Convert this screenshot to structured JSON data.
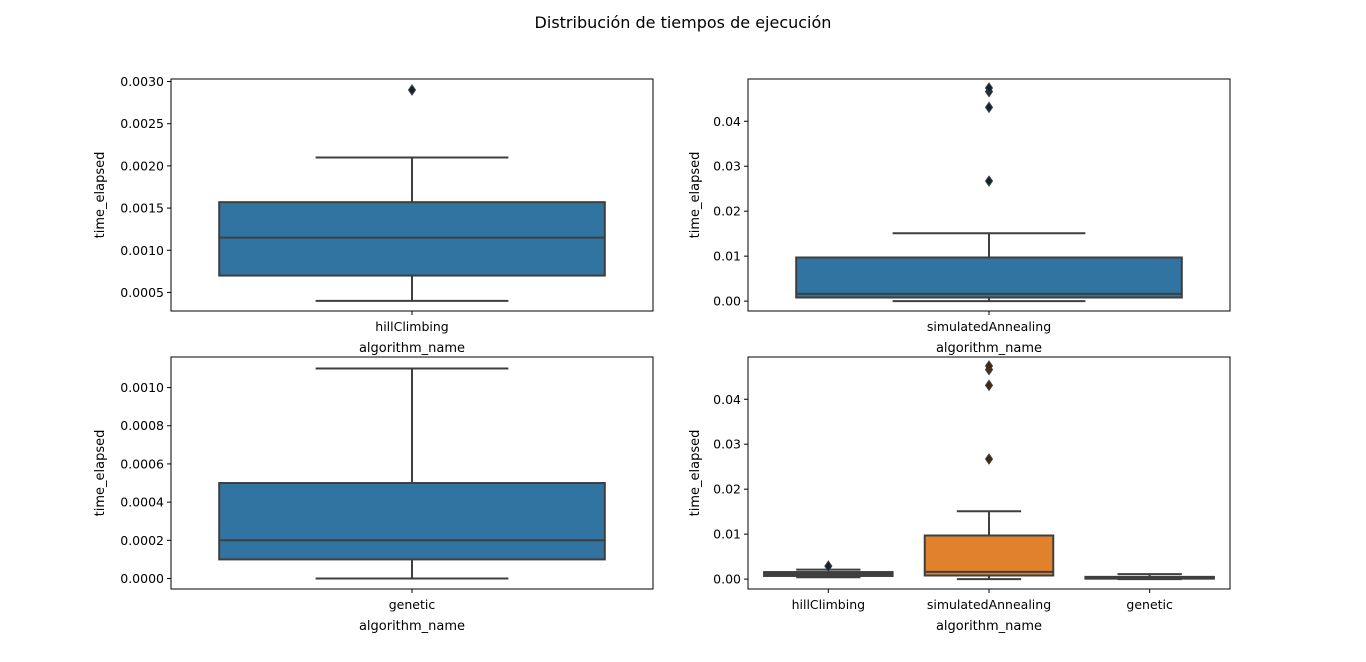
{
  "figure_title": "Distribución de tiempos de ejecución",
  "chart_data": [
    {
      "type": "box",
      "xlabel": "algorithm_name",
      "ylabel": "time_elapsed",
      "ylim": [
        0.00028,
        0.00303
      ],
      "yticks": [
        "0.0005",
        "0.0010",
        "0.0015",
        "0.0020",
        "0.0025",
        "0.0030"
      ],
      "ytick_values": [
        0.0005,
        0.001,
        0.0015,
        0.002,
        0.0025,
        0.003
      ],
      "boxes": [
        {
          "category": "hillClimbing",
          "color": "#3274a1",
          "whisker_low": 0.0004,
          "q1": 0.0007,
          "median": 0.00115,
          "q3": 0.00157,
          "whisker_high": 0.0021,
          "outliers": [
            0.0029
          ]
        }
      ]
    },
    {
      "type": "box",
      "xlabel": "algorithm_name",
      "ylabel": "time_elapsed",
      "ylim": [
        -0.0022,
        0.0494
      ],
      "yticks": [
        "0.00",
        "0.01",
        "0.02",
        "0.03",
        "0.04"
      ],
      "ytick_values": [
        0.0,
        0.01,
        0.02,
        0.03,
        0.04
      ],
      "boxes": [
        {
          "category": "simulatedAnnealing",
          "color": "#3274a1",
          "whisker_low": 0.0,
          "q1": 0.0008,
          "median": 0.0016,
          "q3": 0.0097,
          "whisker_high": 0.0151,
          "outliers": [
            0.0267,
            0.0431,
            0.0466,
            0.0474
          ]
        }
      ]
    },
    {
      "type": "box",
      "xlabel": "algorithm_name",
      "ylabel": "time_elapsed",
      "ylim": [
        -5.5e-05,
        0.00116
      ],
      "yticks": [
        "0.0000",
        "0.0002",
        "0.0004",
        "0.0006",
        "0.0008",
        "0.0010"
      ],
      "ytick_values": [
        0.0,
        0.0002,
        0.0004,
        0.0006,
        0.0008,
        0.001
      ],
      "boxes": [
        {
          "category": "genetic",
          "color": "#3274a1",
          "whisker_low": 0.0,
          "q1": 0.0001,
          "median": 0.0002,
          "q3": 0.0005,
          "whisker_high": 0.0011,
          "outliers": []
        }
      ]
    },
    {
      "type": "box",
      "xlabel": "algorithm_name",
      "ylabel": "time_elapsed",
      "ylim": [
        -0.0022,
        0.0494
      ],
      "yticks": [
        "0.00",
        "0.01",
        "0.02",
        "0.03",
        "0.04"
      ],
      "ytick_values": [
        0.0,
        0.01,
        0.02,
        0.03,
        0.04
      ],
      "boxes": [
        {
          "category": "hillClimbing",
          "color": "#3274a1",
          "whisker_low": 0.0004,
          "q1": 0.0007,
          "median": 0.00115,
          "q3": 0.00157,
          "whisker_high": 0.0021,
          "outliers": [
            0.0029
          ]
        },
        {
          "category": "simulatedAnnealing",
          "color": "#e1812c",
          "whisker_low": 0.0,
          "q1": 0.0008,
          "median": 0.0016,
          "q3": 0.0097,
          "whisker_high": 0.0151,
          "outliers": [
            0.0267,
            0.0431,
            0.0466,
            0.0474
          ]
        },
        {
          "category": "genetic",
          "color": "#3a923a",
          "whisker_low": 0.0,
          "q1": 0.0001,
          "median": 0.0002,
          "q3": 0.0005,
          "whisker_high": 0.0011,
          "outliers": []
        }
      ]
    }
  ]
}
